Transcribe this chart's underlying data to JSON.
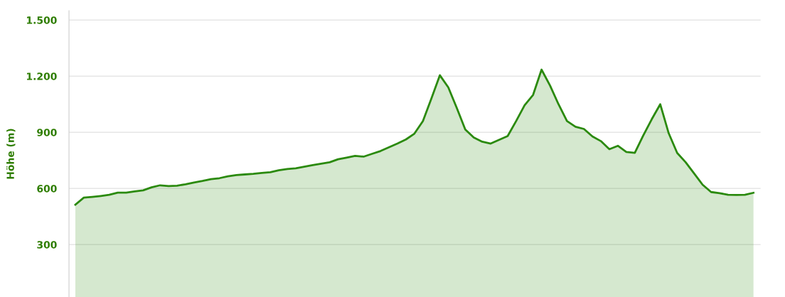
{
  "chart_data": {
    "type": "area",
    "ylabel": "Höhe (m)",
    "categories": [
      null,
      null,
      null,
      null,
      null,
      null,
      null,
      null,
      null,
      null,
      null,
      null,
      null,
      null,
      null,
      null,
      null,
      null,
      null,
      null,
      null,
      null,
      null,
      null,
      null,
      null,
      null,
      null,
      null,
      null,
      null,
      null,
      null,
      null,
      null,
      null,
      null,
      null,
      null,
      null,
      null,
      null,
      null,
      null,
      null,
      null,
      null,
      null,
      null,
      null,
      null,
      null,
      null,
      null,
      null,
      null,
      null,
      null,
      null,
      null,
      null,
      null,
      null,
      null,
      null,
      null,
      null,
      null,
      null,
      null,
      null,
      null,
      null,
      null,
      null,
      null,
      null,
      null,
      null,
      null,
      null
    ],
    "series": [
      {
        "color": "#2b8a0e",
        "values": [
          513,
          551,
          555,
          560,
          566,
          578,
          578,
          584,
          590,
          606,
          617,
          613,
          615,
          622,
          632,
          640,
          650,
          655,
          665,
          672,
          675,
          678,
          683,
          687,
          697,
          704,
          708,
          716,
          725,
          732,
          740,
          756,
          765,
          774,
          770,
          785,
          800,
          820,
          840,
          862,
          893,
          960,
          1080,
          1205,
          1140,
          1030,
          915,
          872,
          850,
          840,
          860,
          880,
          960,
          1045,
          1100,
          1235,
          1150,
          1050,
          960,
          930,
          918,
          878,
          853,
          810,
          828,
          795,
          790,
          883,
          970,
          1050,
          895,
          790,
          740,
          680,
          620,
          581,
          575,
          566,
          565,
          566,
          577
        ]
      }
    ],
    "ylim": [
      20,
      1550
    ],
    "yticks": [
      {
        "value": 300,
        "label": "300"
      },
      {
        "value": 600,
        "label": "600"
      },
      {
        "value": 900,
        "label": "900"
      },
      {
        "value": 1200,
        "label": "1.200"
      },
      {
        "value": 1500,
        "label": "1.500"
      }
    ],
    "grid": "y",
    "tick_labels": "y"
  }
}
